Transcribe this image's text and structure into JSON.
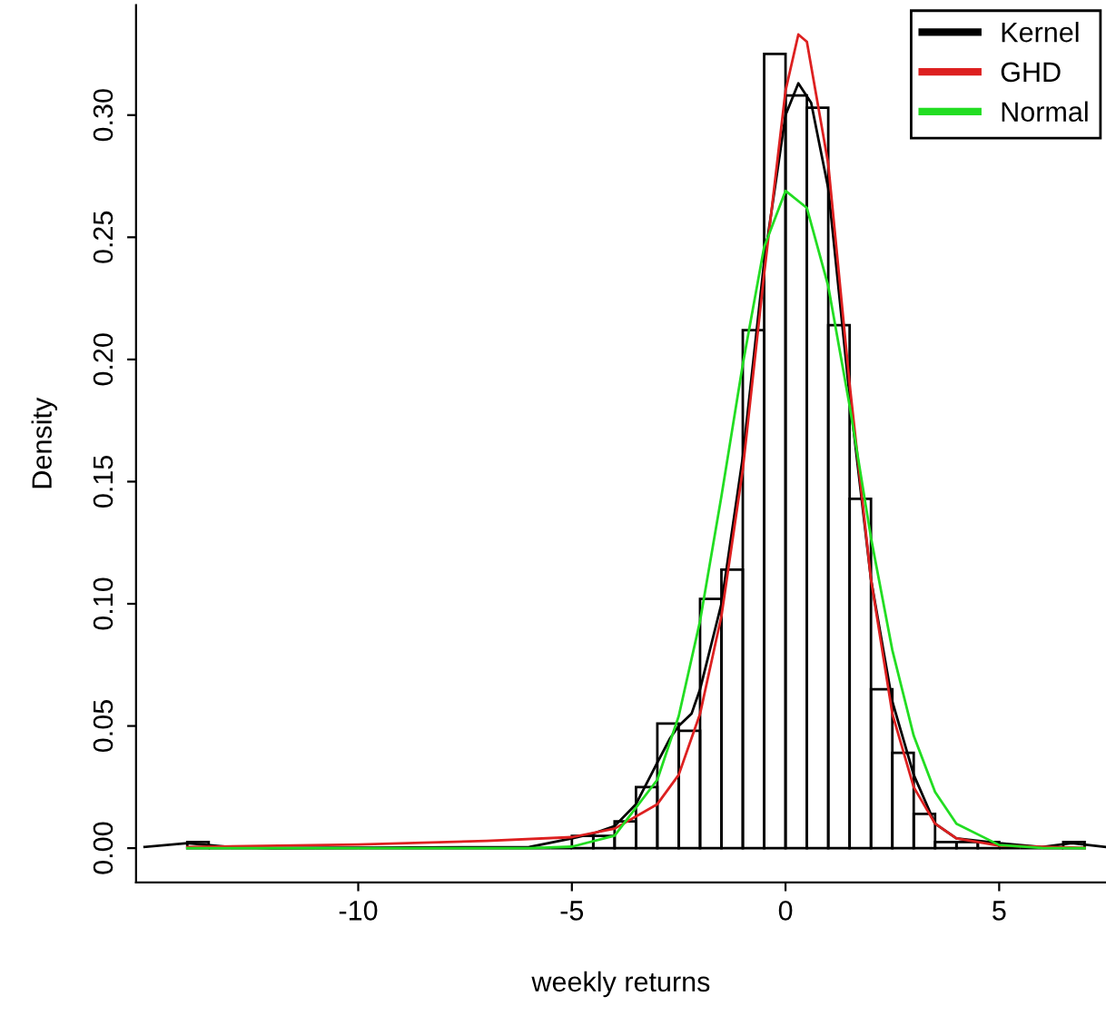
{
  "chart_data": {
    "type": "histogram",
    "xlabel": "weekly returns",
    "ylabel": "Density",
    "bins": [
      -14,
      -13.5,
      -13,
      -12.5,
      -12,
      -11.5,
      -11,
      -10.5,
      -10,
      -9.5,
      -9,
      -8.5,
      -8,
      -7.5,
      -7,
      -6.5,
      -6,
      -5.5,
      -5,
      -4.5,
      -4,
      -3.5,
      -3,
      -2.5,
      -2,
      -1.5,
      -1,
      -0.5,
      0,
      0.5,
      1,
      1.5,
      2,
      2.5,
      3,
      3.5,
      4,
      4.5,
      5,
      5.5,
      6,
      6.5,
      7
    ],
    "values": [
      0.0025,
      0,
      0,
      0,
      0,
      0,
      0,
      0,
      0,
      0,
      0,
      0,
      0,
      0,
      0,
      0,
      0,
      0,
      0.005,
      0.005,
      0.011,
      0.025,
      0.051,
      0.048,
      0.102,
      0.114,
      0.212,
      0.325,
      0.308,
      0.303,
      0.214,
      0.143,
      0.065,
      0.039,
      0.014,
      0.0025,
      0.0025,
      0.0025,
      0,
      0,
      0,
      0.0025
    ],
    "series": [
      {
        "name": "Kernel",
        "type": "line",
        "color": "#000000",
        "x": [
          -15,
          -14,
          -13,
          -12,
          -6,
          -5,
          -4.5,
          -4,
          -3.5,
          -3,
          -2.7,
          -2.5,
          -2.2,
          -2,
          -1.5,
          -1,
          -0.5,
          0,
          0.3,
          0.6,
          1,
          1.5,
          2,
          2.5,
          3,
          3.5,
          4,
          5,
          6,
          6.7,
          7.5
        ],
        "values": [
          0.0005,
          0.002,
          0.0005,
          0,
          0.0005,
          0.004,
          0.006,
          0.009,
          0.018,
          0.035,
          0.045,
          0.05,
          0.055,
          0.065,
          0.1,
          0.16,
          0.24,
          0.3,
          0.313,
          0.305,
          0.27,
          0.185,
          0.11,
          0.06,
          0.03,
          0.01,
          0.004,
          0.002,
          0.0005,
          0.002,
          0.0005
        ]
      },
      {
        "name": "GHD",
        "type": "line",
        "color": "#dd2020",
        "x": [
          -14,
          -10,
          -7,
          -5,
          -4,
          -3,
          -2.5,
          -2,
          -1.5,
          -1,
          -0.5,
          0,
          0.3,
          0.5,
          1,
          1.5,
          2,
          2.5,
          3,
          3.5,
          4,
          5,
          7
        ],
        "values": [
          0.0005,
          0.0015,
          0.003,
          0.0045,
          0.008,
          0.018,
          0.03,
          0.055,
          0.095,
          0.155,
          0.235,
          0.31,
          0.333,
          0.33,
          0.28,
          0.19,
          0.11,
          0.055,
          0.025,
          0.01,
          0.004,
          0.001,
          0.0001
        ]
      },
      {
        "name": "Normal",
        "type": "line",
        "color": "#22dd22",
        "x": [
          -14,
          -6,
          -5,
          -4,
          -3,
          -2.5,
          -2,
          -1.5,
          -1,
          -0.5,
          0,
          0.5,
          1,
          1.5,
          2,
          2.5,
          3,
          3.5,
          4,
          5,
          6,
          7
        ],
        "values": [
          0,
          0,
          0.0006,
          0.0051,
          0.028,
          0.054,
          0.093,
          0.144,
          0.198,
          0.246,
          0.269,
          0.262,
          0.23,
          0.181,
          0.127,
          0.081,
          0.046,
          0.023,
          0.01,
          0.0013,
          0.0001,
          0
        ]
      }
    ],
    "xlim": [
      -15.2,
      7.5
    ],
    "ylim": [
      -0.014,
      0.345
    ],
    "xticks": [
      -10,
      -5,
      0,
      5
    ],
    "yticks": [
      {
        "value": 0,
        "label": "0.00"
      },
      {
        "value": 0.05,
        "label": "0.05"
      },
      {
        "value": 0.1,
        "label": "0.10"
      },
      {
        "value": 0.15,
        "label": "0.15"
      },
      {
        "value": 0.2,
        "label": "0.20"
      },
      {
        "value": 0.25,
        "label": "0.25"
      },
      {
        "value": 0.3,
        "label": "0.30"
      }
    ],
    "color": "#000000",
    "legend": "top right",
    "grid": false
  }
}
